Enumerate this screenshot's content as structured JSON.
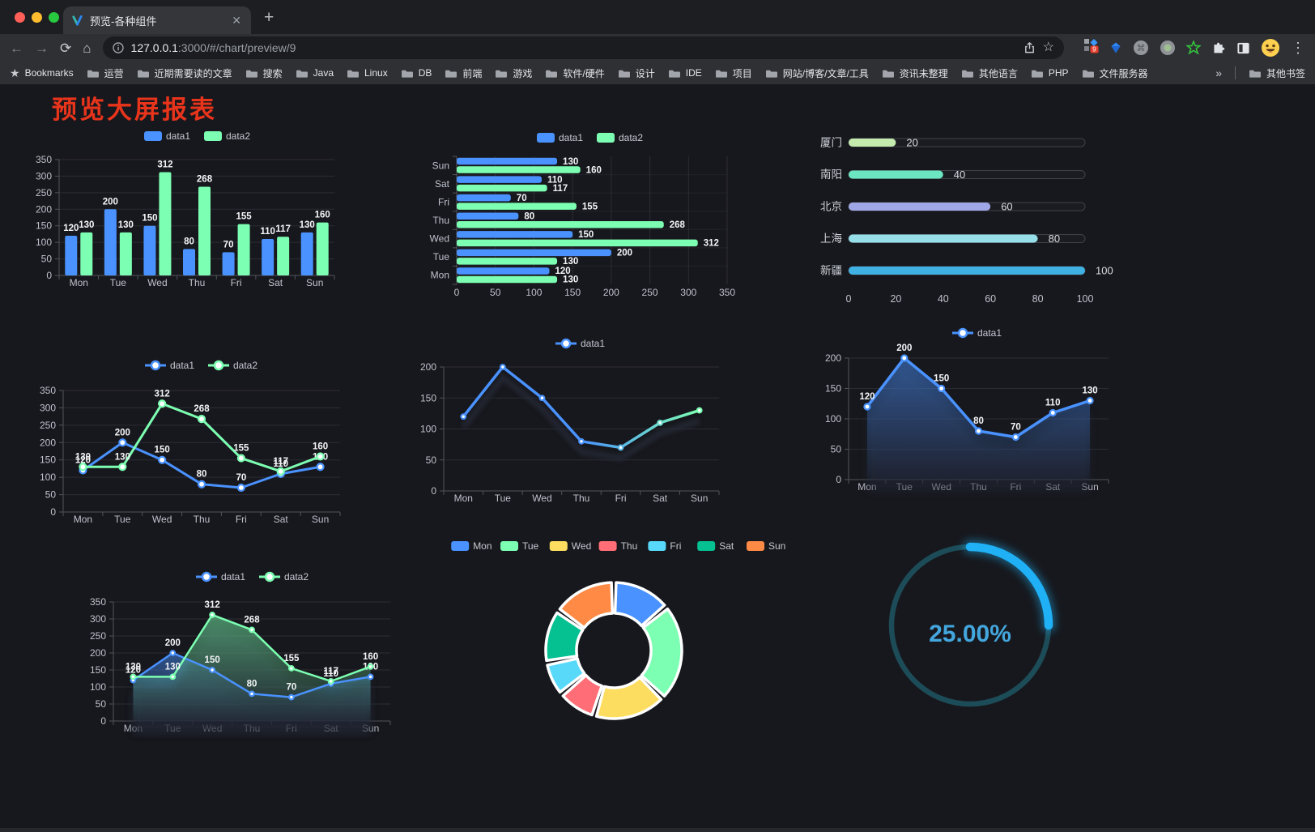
{
  "browser": {
    "tab_title": "预览-各种组件",
    "url_host": "127.0.0.1",
    "url_rest": ":3000/#/chart/preview/9",
    "bookmarks_label": "Bookmarks",
    "bookmarks": [
      "运营",
      "近期需要读的文章",
      "搜索",
      "Java",
      "Linux",
      "DB",
      "前端",
      "游戏",
      "软件/硬件",
      "设计",
      "IDE",
      "项目",
      "网站/博客/文章/工具",
      "资讯未整理",
      "其他语言",
      "PHP",
      "文件服务器"
    ],
    "other_bookmarks": "其他书签",
    "ext_badge": "9",
    "icons": {
      "close": "✕",
      "new_tab": "+",
      "back": "←",
      "forward": "→",
      "reload": "⟳",
      "home": "⌂",
      "star": "☆",
      "menu": "⋮",
      "overflow": "»",
      "bookmarks_star": "★",
      "circle_glyph": "⌘"
    }
  },
  "page": {
    "title": "预览大屏报表",
    "title_color": "#e9341c"
  },
  "chart_data": [
    {
      "id": "bar-vertical",
      "type": "bar",
      "categories": [
        "Mon",
        "Tue",
        "Wed",
        "Thu",
        "Fri",
        "Sat",
        "Sun"
      ],
      "series": [
        {
          "name": "data1",
          "color": "#4992ff",
          "values": [
            120,
            200,
            150,
            80,
            70,
            110,
            130
          ]
        },
        {
          "name": "data2",
          "color": "#7cffb2",
          "values": [
            130,
            130,
            312,
            268,
            155,
            117,
            160
          ]
        }
      ],
      "ylim": [
        0,
        350
      ],
      "yticks": [
        0,
        50,
        100,
        150,
        200,
        250,
        300,
        350
      ],
      "legend_position": "top",
      "grid": true,
      "labels": true
    },
    {
      "id": "bar-horizontal",
      "type": "bar-horizontal",
      "categories": [
        "Mon",
        "Tue",
        "Wed",
        "Thu",
        "Fri",
        "Sat",
        "Sun"
      ],
      "series": [
        {
          "name": "data1",
          "color": "#4992ff",
          "values": [
            120,
            200,
            150,
            80,
            70,
            110,
            130
          ]
        },
        {
          "name": "data2",
          "color": "#7cffb2",
          "values": [
            130,
            130,
            312,
            268,
            155,
            117,
            160
          ]
        }
      ],
      "xlim": [
        0,
        350
      ],
      "xticks": [
        0,
        50,
        100,
        150,
        200,
        250,
        300,
        350
      ],
      "legend_position": "top",
      "grid": true,
      "labels": true
    },
    {
      "id": "progress-bars",
      "type": "progress",
      "categories": [
        "厦门",
        "南阳",
        "北京",
        "上海",
        "新疆"
      ],
      "values": [
        20,
        40,
        60,
        80,
        100
      ],
      "colors": [
        "#c4ebad",
        "#6be6c1",
        "#a0a7e6",
        "#96dee8",
        "#3fb1e3"
      ],
      "xlim": [
        0,
        100
      ],
      "xticks": [
        0,
        20,
        40,
        60,
        80,
        100
      ]
    },
    {
      "id": "line-basic",
      "type": "line",
      "categories": [
        "Mon",
        "Tue",
        "Wed",
        "Thu",
        "Fri",
        "Sat",
        "Sun"
      ],
      "series": [
        {
          "name": "data1",
          "color": "#4992ff",
          "values": [
            120,
            200,
            150,
            80,
            70,
            110,
            130
          ]
        },
        {
          "name": "data2",
          "color": "#7cffb2",
          "values": [
            130,
            130,
            312,
            268,
            155,
            117,
            160
          ]
        }
      ],
      "ylim": [
        0,
        350
      ],
      "yticks": [
        0,
        50,
        100,
        150,
        200,
        250,
        300,
        350
      ],
      "legend_position": "top",
      "markers": true,
      "labels": true
    },
    {
      "id": "line-gradient",
      "type": "line",
      "categories": [
        "Mon",
        "Tue",
        "Wed",
        "Thu",
        "Fri",
        "Sat",
        "Sun"
      ],
      "series": [
        {
          "name": "data1",
          "gradient": [
            "#4992ff",
            "#7cffb2"
          ],
          "values": [
            120,
            200,
            150,
            80,
            70,
            110,
            130
          ]
        }
      ],
      "ylim": [
        0,
        200
      ],
      "yticks": [
        0,
        50,
        100,
        150,
        200
      ],
      "legend_position": "top",
      "markers": true,
      "labels": false,
      "shadow": true
    },
    {
      "id": "area-single",
      "type": "area",
      "categories": [
        "Mon",
        "Tue",
        "Wed",
        "Thu",
        "Fri",
        "Sat",
        "Sun"
      ],
      "series": [
        {
          "name": "data1",
          "color": "#4992ff",
          "values": [
            120,
            200,
            150,
            80,
            70,
            110,
            130
          ],
          "area": true
        }
      ],
      "ylim": [
        0,
        200
      ],
      "yticks": [
        0,
        50,
        100,
        150,
        200
      ],
      "legend_position": "top",
      "markers": true,
      "labels": true,
      "shadow": true
    },
    {
      "id": "area-double",
      "type": "area",
      "categories": [
        "Mon",
        "Tue",
        "Wed",
        "Thu",
        "Fri",
        "Sat",
        "Sun"
      ],
      "series": [
        {
          "name": "data1",
          "color": "#4992ff",
          "values": [
            120,
            200,
            150,
            80,
            70,
            110,
            130
          ],
          "area": true
        },
        {
          "name": "data2",
          "color": "#7cffb2",
          "values": [
            130,
            130,
            312,
            268,
            155,
            117,
            160
          ],
          "area": true
        }
      ],
      "ylim": [
        0,
        350
      ],
      "yticks": [
        0,
        50,
        100,
        150,
        200,
        250,
        300,
        350
      ],
      "legend_position": "top",
      "markers": true,
      "labels": true,
      "shadow": true
    },
    {
      "id": "donut",
      "type": "pie",
      "categories": [
        "Mon",
        "Tue",
        "Wed",
        "Thu",
        "Fri",
        "Sat",
        "Sun"
      ],
      "values": [
        120,
        200,
        150,
        80,
        70,
        110,
        130
      ],
      "colors": [
        "#4992ff",
        "#7cffb2",
        "#fddd60",
        "#ff6e76",
        "#58d9f9",
        "#05c091",
        "#ff8a45"
      ],
      "legend_position": "top",
      "inner_radius": true
    },
    {
      "id": "gauge",
      "type": "gauge",
      "value": 25,
      "label": "25.00%",
      "color": "#1fb0f5",
      "track_color": "#1d4c59",
      "text_color": "#43a6dd"
    }
  ]
}
